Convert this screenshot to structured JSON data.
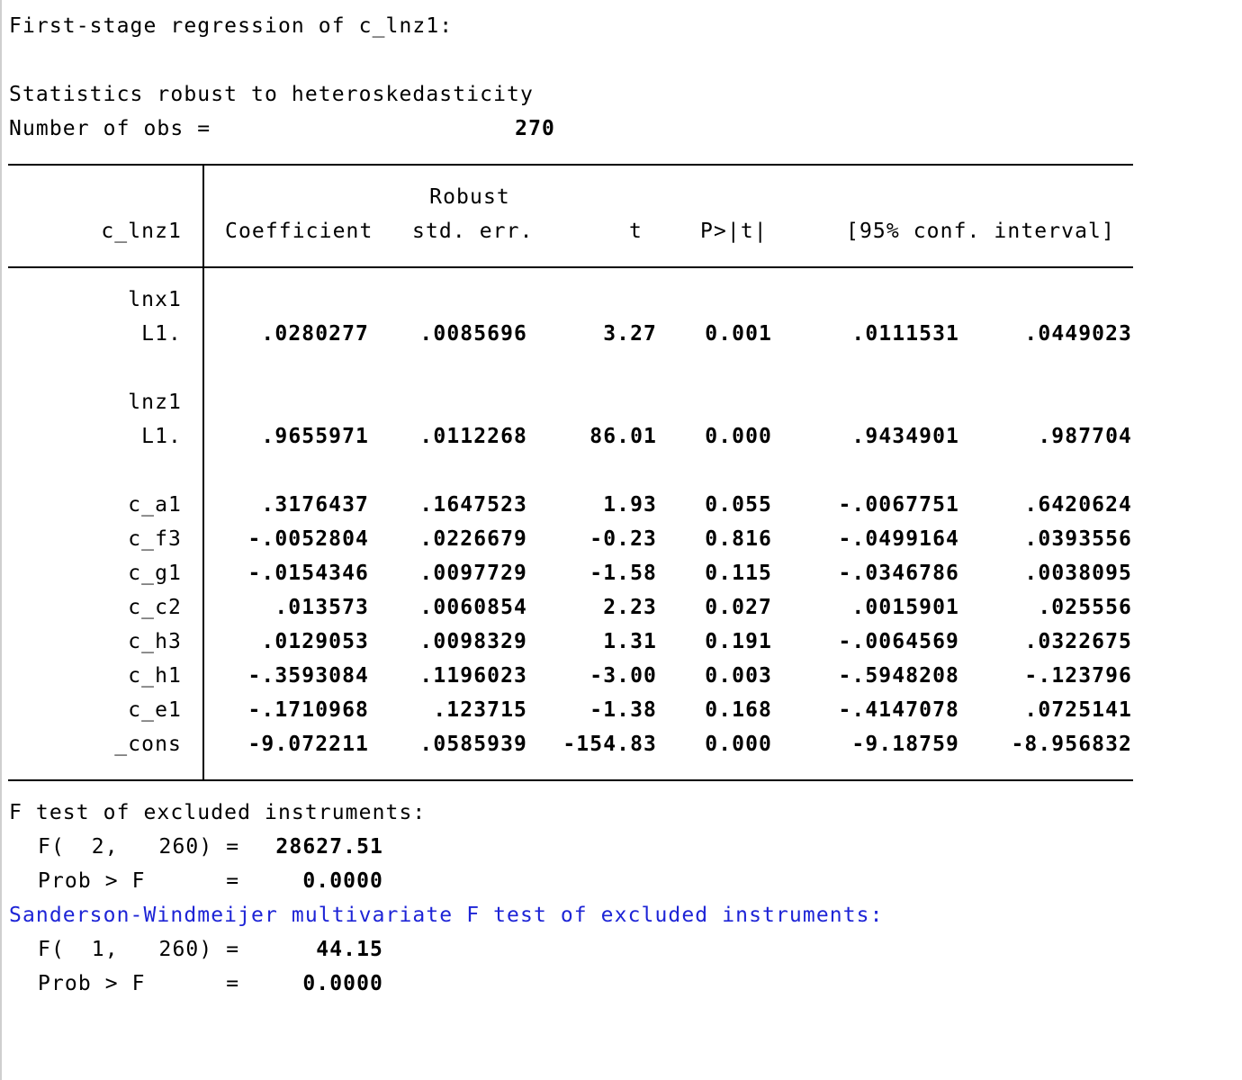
{
  "header": {
    "title": "First-stage regression of c_lnz1:",
    "robust_note": "Statistics robust to heteroskedasticity",
    "nobs_label": "Number of obs =",
    "nobs_value": "270"
  },
  "table": {
    "depvar": "c_lnz1",
    "col_robust": "Robust",
    "col_coef": "Coefficient",
    "col_se": "std. err.",
    "col_t": "t",
    "col_p": "P>|t|",
    "col_ci": "[95% conf. interval]",
    "groups": [
      {
        "name": "lnx1",
        "sub": "L1.",
        "coef": ".0280277",
        "se": ".0085696",
        "t": "3.27",
        "p": "0.001",
        "lo": ".0111531",
        "hi": ".0449023"
      },
      {
        "name": "lnz1",
        "sub": "L1.",
        "coef": ".9655971",
        "se": ".0112268",
        "t": "86.01",
        "p": "0.000",
        "lo": ".9434901",
        "hi": ".987704"
      }
    ],
    "rows": [
      {
        "name": "c_a1",
        "coef": ".3176437",
        "se": ".1647523",
        "t": "1.93",
        "p": "0.055",
        "lo": "-.0067751",
        "hi": ".6420624"
      },
      {
        "name": "c_f3",
        "coef": "-.0052804",
        "se": ".0226679",
        "t": "-0.23",
        "p": "0.816",
        "lo": "-.0499164",
        "hi": ".0393556"
      },
      {
        "name": "c_g1",
        "coef": "-.0154346",
        "se": ".0097729",
        "t": "-1.58",
        "p": "0.115",
        "lo": "-.0346786",
        "hi": ".0038095"
      },
      {
        "name": "c_c2",
        "coef": ".013573",
        "se": ".0060854",
        "t": "2.23",
        "p": "0.027",
        "lo": ".0015901",
        "hi": ".025556"
      },
      {
        "name": "c_h3",
        "coef": ".0129053",
        "se": ".0098329",
        "t": "1.31",
        "p": "0.191",
        "lo": "-.0064569",
        "hi": ".0322675"
      },
      {
        "name": "c_h1",
        "coef": "-.3593084",
        "se": ".1196023",
        "t": "-3.00",
        "p": "0.003",
        "lo": "-.5948208",
        "hi": "-.123796"
      },
      {
        "name": "c_e1",
        "coef": "-.1710968",
        "se": ".123715",
        "t": "-1.38",
        "p": "0.168",
        "lo": "-.4147078",
        "hi": ".0725141"
      },
      {
        "name": "_cons",
        "coef": "-9.072211",
        "se": ".0585939",
        "t": "-154.83",
        "p": "0.000",
        "lo": "-9.18759",
        "hi": "-8.956832"
      }
    ]
  },
  "ftest": {
    "title": "F test of excluded instruments:",
    "f_label": "F(  2,   260) =",
    "f_value": "28627.51",
    "prob_label": "Prob > F      =",
    "prob_value": "0.0000"
  },
  "sw_test": {
    "title": "Sanderson-Windmeijer multivariate F test of excluded instruments:",
    "f_label": "F(  1,   260) =",
    "f_value": "44.15",
    "prob_label": "Prob > F      =",
    "prob_value": "0.0000"
  },
  "colors": {
    "text": "#000000",
    "link_blue": "#1d24d6",
    "background": "#ffffff"
  }
}
